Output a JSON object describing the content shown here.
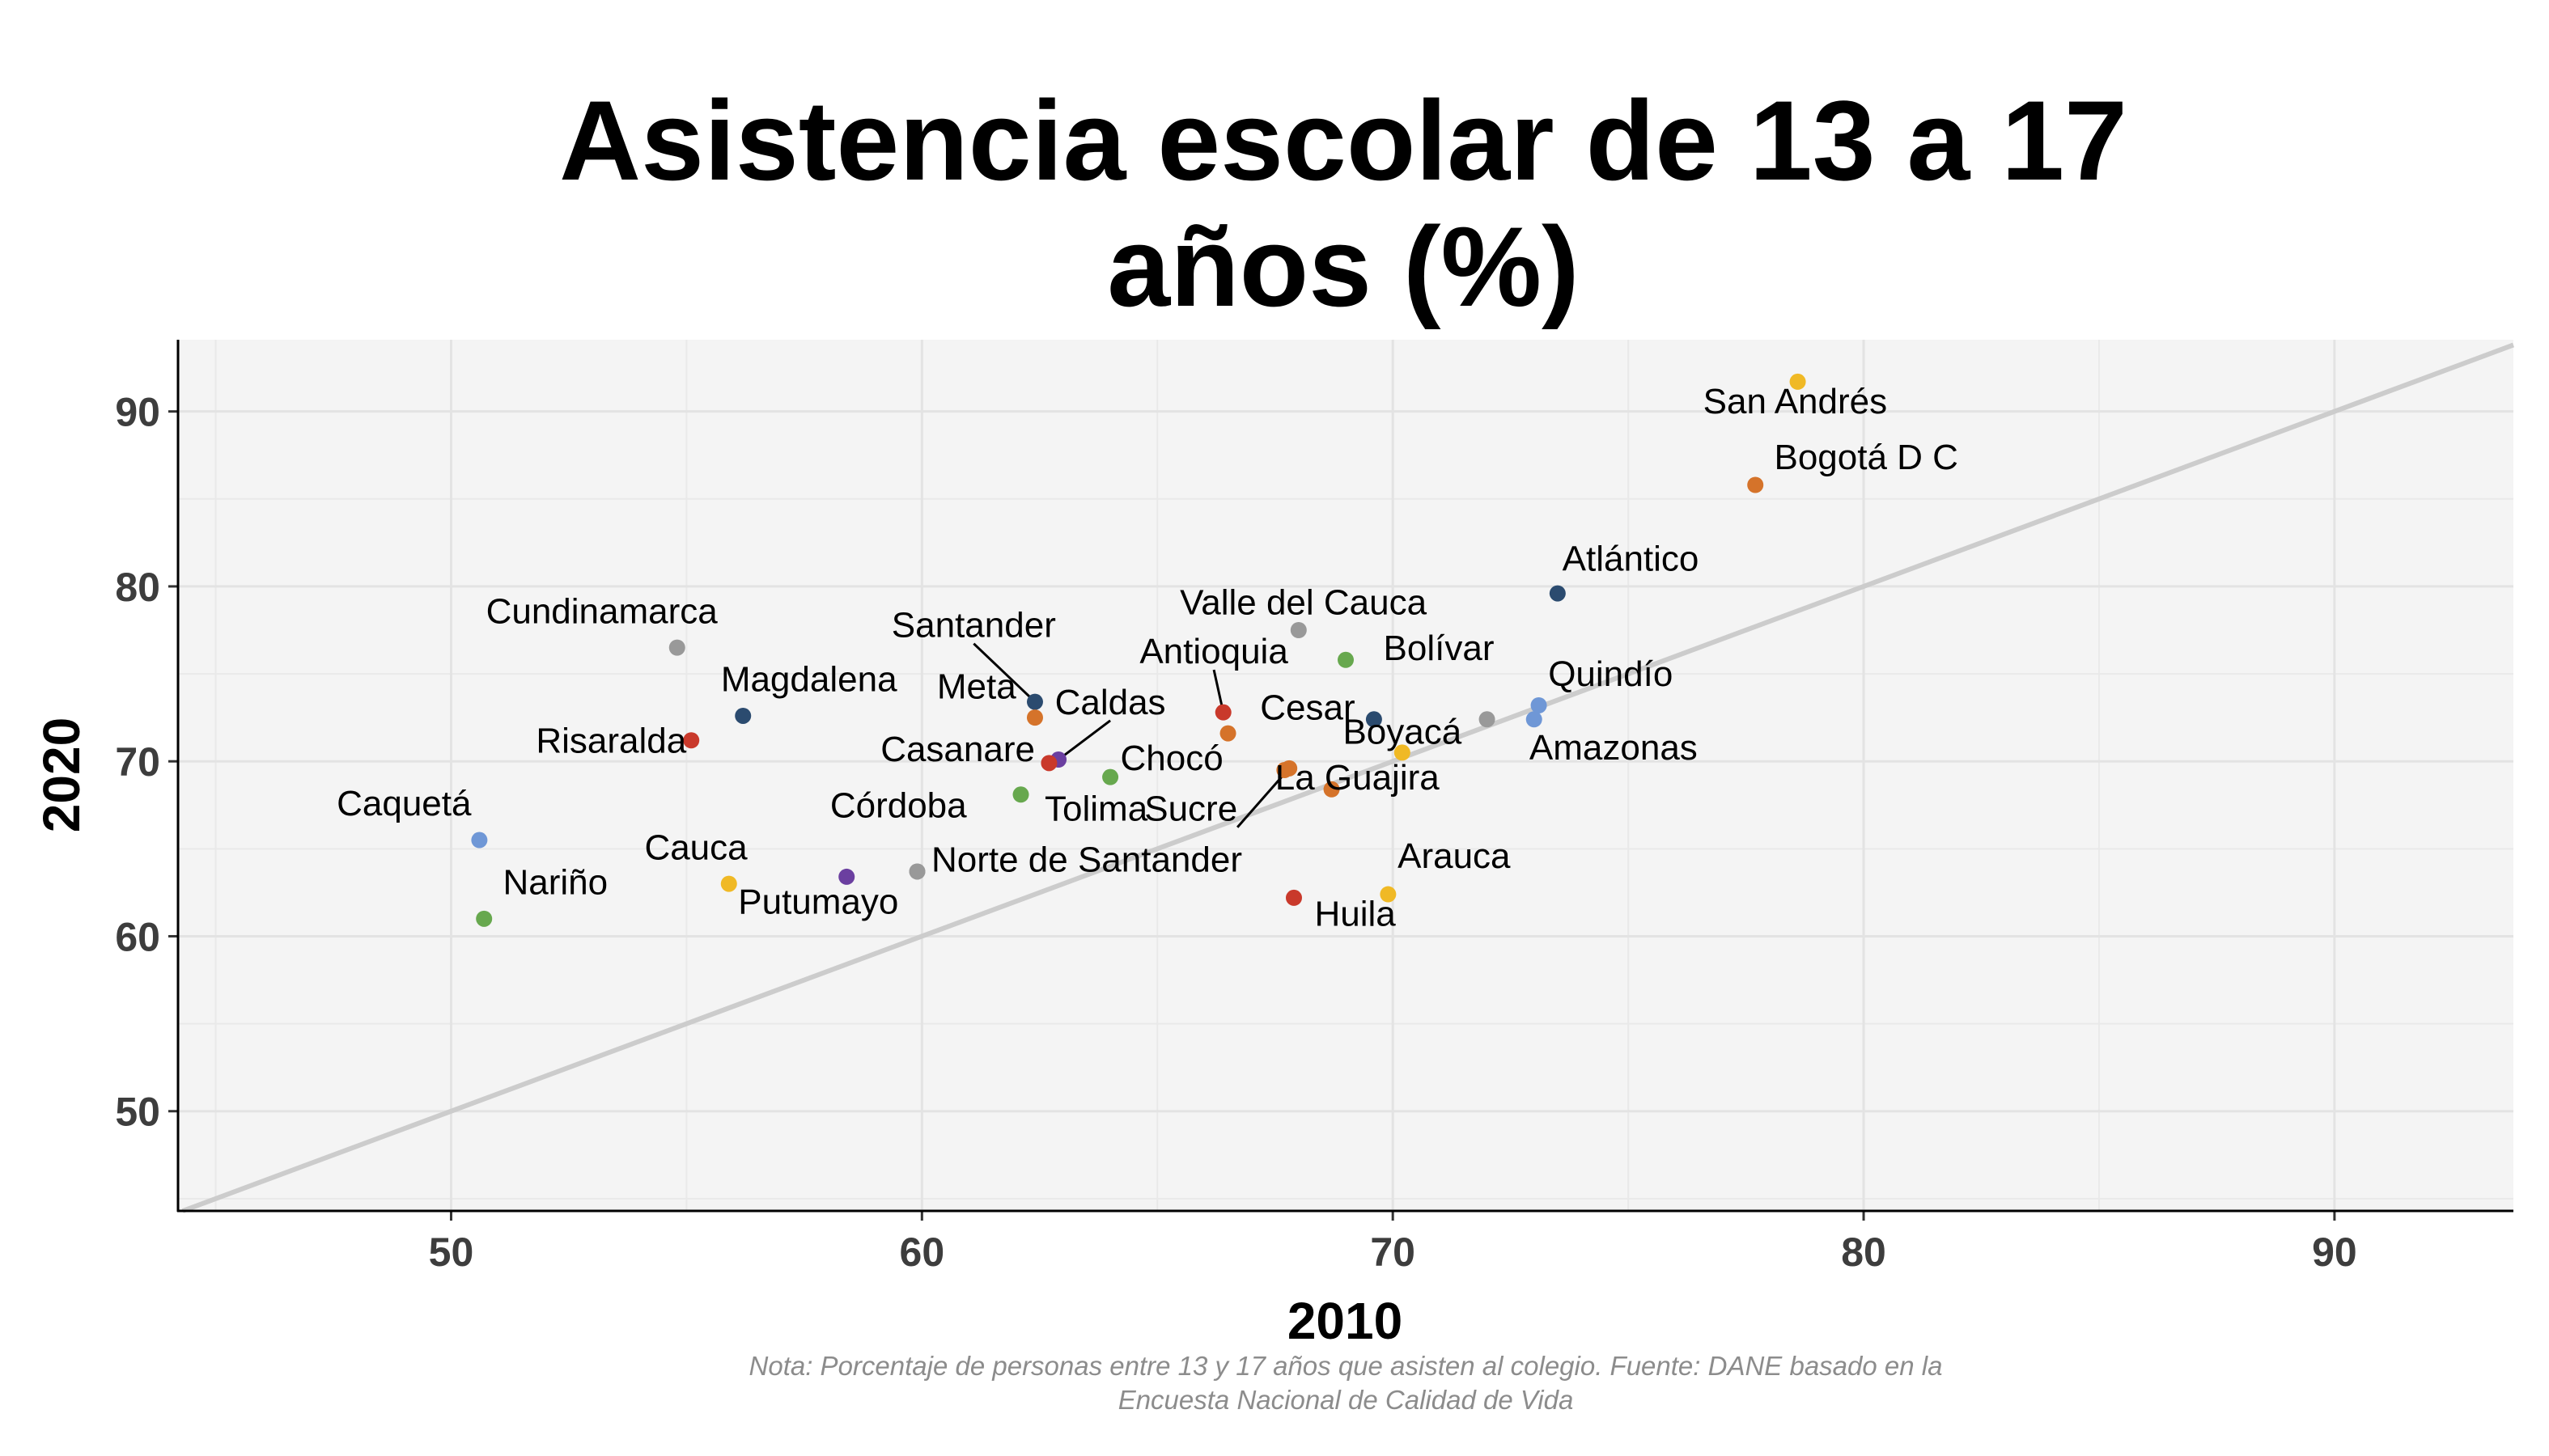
{
  "chart_data": {
    "type": "scatter",
    "title": [
      "Asistencia escolar de 13 a 17",
      "años (%)"
    ],
    "xlabel": "2010",
    "ylabel": "2020",
    "xlim": [
      44.2,
      93.8
    ],
    "ylim": [
      44.3,
      94.1
    ],
    "x_ticks": [
      50,
      60,
      70,
      80,
      90
    ],
    "y_ticks": [
      50,
      60,
      70,
      80,
      90
    ],
    "grid": true,
    "reference_line": "y = x",
    "note": [
      "Nota: Porcentaje de personas entre 13 y 17 años que asisten al colegio. Fuente: DANE basado en la",
      "Encuesta Nacional de Calidad de Vida"
    ],
    "points": [
      {
        "label": "San Andrés",
        "x": 78.6,
        "y": 91.7,
        "color": "#f0b925",
        "lx": 1.9,
        "ly": -1.8,
        "anchor": "end"
      },
      {
        "label": "Bogotá D C",
        "x": 77.7,
        "y": 85.8,
        "color": "#d5732a",
        "lx": 0.4,
        "ly": 0.9,
        "anchor": "start"
      },
      {
        "label": "Atlántico",
        "x": 73.5,
        "y": 79.6,
        "color": "#2b4b6f",
        "lx": 0.1,
        "ly": 1.3,
        "anchor": "start"
      },
      {
        "label": "Valle del Cauca",
        "x": 68.0,
        "y": 77.5,
        "color": "#999999",
        "lx": 0.1,
        "ly": 0.9,
        "anchor": "middle"
      },
      {
        "label": "Bolívar",
        "x": 69.0,
        "y": 75.8,
        "color": "#67a84e",
        "lx": 0.8,
        "ly": 0.0,
        "anchor": "start"
      },
      {
        "label": "Quindío",
        "x": 73.1,
        "y": 73.2,
        "color": "#6f97d6",
        "lx": 0.2,
        "ly": 1.1,
        "anchor": "start"
      },
      {
        "label": "Amazonas",
        "x": 73.0,
        "y": 72.4,
        "color": "#6f97d6",
        "lx": -0.1,
        "ly": -2.3,
        "anchor": "start"
      },
      {
        "label": "Cesar",
        "x": 69.6,
        "y": 72.4,
        "color": "#2b4b6f",
        "lx": -0.4,
        "ly": 0.0,
        "anchor": "end"
      },
      {
        "label": "Boyacá",
        "x": 70.2,
        "y": 70.5,
        "color": "#f0b925",
        "lx": 0.0,
        "ly": 0.5,
        "anchor": "middle"
      },
      {
        "label": "",
        "x": 72.0,
        "y": 72.4,
        "color": "#999999",
        "lx": 0,
        "ly": 0,
        "anchor": "start"
      },
      {
        "label": "Antioquia",
        "x": 66.4,
        "y": 72.8,
        "color": "#c9392b",
        "lx": -0.2,
        "ly": 2.8,
        "anchor": "middle"
      },
      {
        "label": "",
        "x": 66.5,
        "y": 71.6,
        "color": "#d5732a",
        "lx": 0,
        "ly": 0,
        "anchor": "start"
      },
      {
        "label": "Chocó",
        "x": 67.7,
        "y": 69.5,
        "color": "#d5732a",
        "lx": -1.3,
        "ly": 0.0,
        "anchor": "end"
      },
      {
        "label": "La Guajira",
        "x": 68.7,
        "y": 68.4,
        "color": "#d5732a",
        "lx": -1.2,
        "ly": 0.0,
        "anchor": "start"
      },
      {
        "label": "Sucre",
        "x": 67.8,
        "y": 69.6,
        "color": "#d5732a",
        "lx": -1.1,
        "ly": -3.0,
        "anchor": "end"
      },
      {
        "label": "Santander",
        "x": 62.4,
        "y": 73.4,
        "color": "#2b4b6f",
        "lx": -1.3,
        "ly": 3.7,
        "anchor": "middle"
      },
      {
        "label": "Meta",
        "x": 62.4,
        "y": 72.5,
        "color": "#d5732a",
        "lx": -0.4,
        "ly": 1.1,
        "anchor": "end"
      },
      {
        "label": "Caldas",
        "x": 62.9,
        "y": 70.1,
        "color": "#6b3fa0",
        "lx": 1.1,
        "ly": 2.6,
        "anchor": "middle"
      },
      {
        "label": "Casanare",
        "x": 62.7,
        "y": 69.9,
        "color": "#c9392b",
        "lx": -0.3,
        "ly": 0.1,
        "anchor": "end"
      },
      {
        "label": "Tolima",
        "x": 64.0,
        "y": 69.1,
        "color": "#67a84e",
        "lx": -0.3,
        "ly": -2.5,
        "anchor": "middle"
      },
      {
        "label": "",
        "x": 62.1,
        "y": 68.1,
        "color": "#67a84e",
        "lx": 0,
        "ly": 0,
        "anchor": "start"
      },
      {
        "label": "Córdoba",
        "x": 59.9,
        "y": 63.7,
        "color": "#999999",
        "lx": -0.4,
        "ly": 3.1,
        "anchor": "middle"
      },
      {
        "label": "Norte de Santander",
        "x": 59.9,
        "y": 63.7,
        "color": "#999999",
        "lx": 0.3,
        "ly": 0.0,
        "anchor": "start"
      },
      {
        "label": "Huila",
        "x": 67.9,
        "y": 62.2,
        "color": "#c9392b",
        "lx": 1.3,
        "ly": -1.6,
        "anchor": "middle"
      },
      {
        "label": "Arauca",
        "x": 69.9,
        "y": 62.4,
        "color": "#f0b925",
        "lx": 1.4,
        "ly": 1.5,
        "anchor": "middle"
      },
      {
        "label": "Magdalena",
        "x": 56.2,
        "y": 72.6,
        "color": "#2b4b6f",
        "lx": 1.4,
        "ly": 1.4,
        "anchor": "middle"
      },
      {
        "label": "Cundinamarca",
        "x": 54.8,
        "y": 76.5,
        "color": "#999999",
        "lx": -1.6,
        "ly": 1.4,
        "anchor": "middle"
      },
      {
        "label": "Risaralda",
        "x": 55.1,
        "y": 71.2,
        "color": "#c9392b",
        "lx": -1.7,
        "ly": -0.7,
        "anchor": "middle"
      },
      {
        "label": "Caquetá",
        "x": 50.6,
        "y": 65.5,
        "color": "#6f97d6",
        "lx": -1.6,
        "ly": 1.4,
        "anchor": "middle"
      },
      {
        "label": "Nariño",
        "x": 50.7,
        "y": 61.0,
        "color": "#67a84e",
        "lx": 0.4,
        "ly": 1.4,
        "anchor": "start"
      },
      {
        "label": "Cauca",
        "x": 55.9,
        "y": 63.0,
        "color": "#f0b925",
        "lx": -0.7,
        "ly": 1.4,
        "anchor": "middle"
      },
      {
        "label": "Putumayo",
        "x": 58.4,
        "y": 63.4,
        "color": "#6b3fa0",
        "lx": -0.6,
        "ly": -2.1,
        "anchor": "middle"
      }
    ],
    "leader_lines": [
      "Santander",
      "Antioquia",
      "Caldas",
      "Sucre",
      "Boyacá"
    ]
  }
}
